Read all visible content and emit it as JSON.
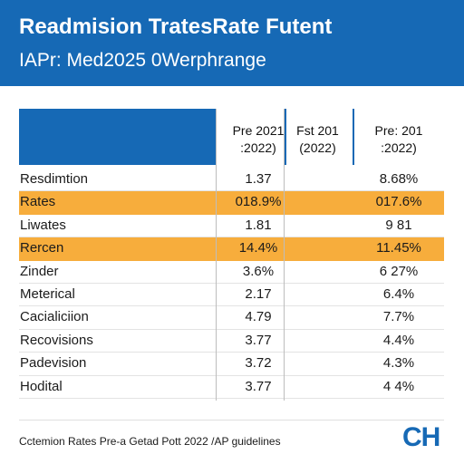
{
  "header": {
    "title": "Readmision TratesRate Futent",
    "subtitle": "IAPr: Med2025 0Werphrange"
  },
  "table": {
    "columns": [
      {
        "line1": "Pre 2021",
        "line2": ":2022)"
      },
      {
        "line1": "Fst 201",
        "line2": "(2022)"
      },
      {
        "line1": "Pre: 201",
        "line2": ":2022)"
      }
    ],
    "rows": [
      {
        "label": "Resdimtion",
        "v1": "1.37",
        "v3": "8.68%",
        "highlight": false
      },
      {
        "label": "Rates",
        "v1": "018.9%",
        "v3": "017.6%",
        "highlight": true
      },
      {
        "label": "Liwates",
        "v1": "1.81",
        "v3": "9 81",
        "highlight": false
      },
      {
        "label": "Rercen",
        "v1": "14.4%",
        "v3": "11.45%",
        "highlight": true
      },
      {
        "label": "Zinder",
        "v1": "3.6%",
        "v3": "6 27%",
        "highlight": false
      },
      {
        "label": "Meterical",
        "v1": "2.17",
        "v3": "6.4%",
        "highlight": false
      },
      {
        "label": "Cacialiciion",
        "v1": "4.79",
        "v3": "7.7%",
        "highlight": false
      },
      {
        "label": "Recovisions",
        "v1": "3.77",
        "v3": "4.4%",
        "highlight": false
      },
      {
        "label": "Padevision",
        "v1": "3.72",
        "v3": "4.3%",
        "highlight": false
      },
      {
        "label": "Hodital",
        "v1": "3.77",
        "v3": "4 4%",
        "highlight": false
      }
    ]
  },
  "footer": {
    "note": "Cctemion Rates Pre-a Getad Pott 2022 /AP guidelines",
    "logo": "CH"
  },
  "colors": {
    "brand_blue": "#1669b5",
    "highlight_orange": "#f7ad3c"
  }
}
